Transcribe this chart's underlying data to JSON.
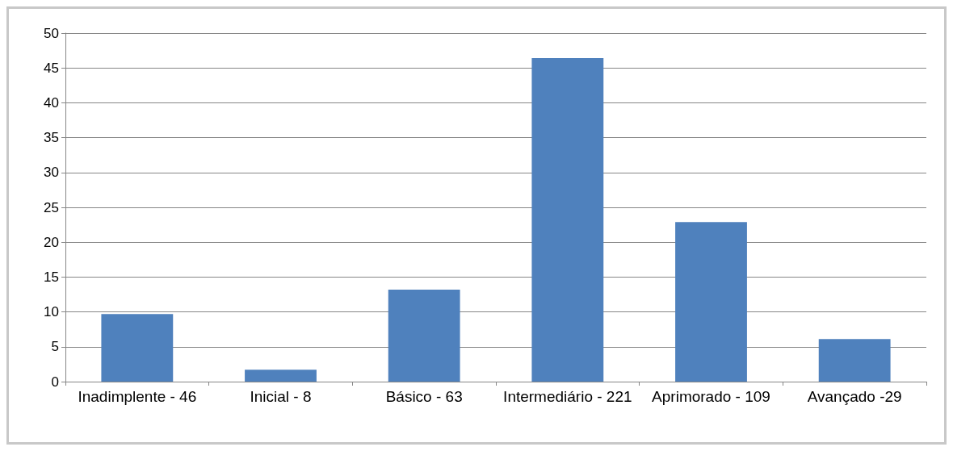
{
  "chart_data": {
    "type": "bar",
    "categories": [
      "Inadimplente - 46",
      "Inicial - 8",
      "Básico - 63",
      "Intermediário - 221",
      "Aprimorado - 109",
      "Avançado -29"
    ],
    "values": [
      9.7,
      1.7,
      13.2,
      46.4,
      22.9,
      6.1
    ],
    "color": "#4f81bd",
    "ylim": [
      0,
      50
    ],
    "yticks": [
      0,
      5,
      10,
      15,
      20,
      25,
      30,
      35,
      40,
      45,
      50
    ],
    "grid": "y"
  }
}
